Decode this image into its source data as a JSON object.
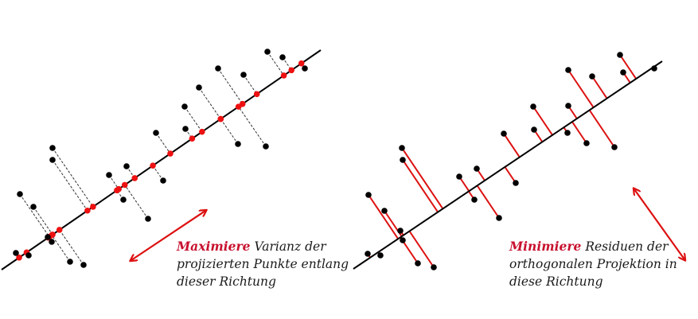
{
  "colors": {
    "line": "#000000",
    "point": "#000000",
    "projection": "#ee1111",
    "residual": "#dd1111",
    "arrow": "#dd1111",
    "highlight": "#c8102e"
  },
  "panels": [
    {
      "name": "maximize-variance",
      "line": {
        "from": [
          2,
          339
        ],
        "to": [
          403,
          63
        ]
      },
      "projection_style": "dashed",
      "show_projected_points": true,
      "arrow": {
        "from": [
          165,
          327
        ],
        "to": [
          258,
          265
        ],
        "heads": "both"
      },
      "points": [
        [
          25,
          244
        ],
        [
          42,
          260
        ],
        [
          20,
          318
        ],
        [
          36,
          321
        ],
        [
          60,
          298
        ],
        [
          65,
          304
        ],
        [
          88,
          329
        ],
        [
          105,
          333
        ],
        [
          66,
          186
        ],
        [
          66,
          201
        ],
        [
          137,
          220
        ],
        [
          159,
          209
        ],
        [
          155,
          251
        ],
        [
          186,
          275
        ],
        [
          205,
          227
        ],
        [
          196,
          167
        ],
        [
          232,
          134
        ],
        [
          233,
          162
        ],
        [
          250,
          110
        ],
        [
          299,
          181
        ],
        [
          334,
          184
        ],
        [
          274,
          86
        ],
        [
          306,
          94
        ],
        [
          336,
          65
        ],
        [
          355,
          72
        ],
        [
          383,
          86
        ]
      ],
      "caption": {
        "lead": "Maximiere",
        "line1_rest": " Varianz der",
        "line2": "projizierten Punkte entlang",
        "line3": "dieser Richtung"
      }
    },
    {
      "name": "minimize-residuals",
      "line": {
        "from": [
          444,
          338
        ],
        "to": [
          832,
          77
        ]
      },
      "projection_style": "solid",
      "show_projected_points": false,
      "arrow": {
        "from": [
          797,
          238
        ],
        "to": [
          860,
          326
        ],
        "heads": "both"
      },
      "points": [
        [
          463,
          245
        ],
        [
          483,
          265
        ],
        [
          462,
          319
        ],
        [
          478,
          321
        ],
        [
          503,
          290
        ],
        [
          506,
          302
        ],
        [
          525,
          331
        ],
        [
          545,
          336
        ],
        [
          505,
          186
        ],
        [
          506,
          201
        ],
        [
          577,
          222
        ],
        [
          599,
          212
        ],
        [
          596,
          251
        ],
        [
          627,
          274
        ],
        [
          648,
          230
        ],
        [
          633,
          168
        ],
        [
          670,
          134
        ],
        [
          671,
          163
        ],
        [
          714,
          88
        ],
        [
          744,
          96
        ],
        [
          714,
          133
        ],
        [
          713,
          167
        ],
        [
          737,
          180
        ],
        [
          772,
          185
        ],
        [
          779,
          69
        ],
        [
          783,
          91
        ],
        [
          822,
          86
        ]
      ],
      "caption": {
        "lead": "Minimiere",
        "line1_rest": " Residuen der",
        "line2": "orthogonalen Projektion in",
        "line3": "diese Richtung"
      }
    }
  ]
}
